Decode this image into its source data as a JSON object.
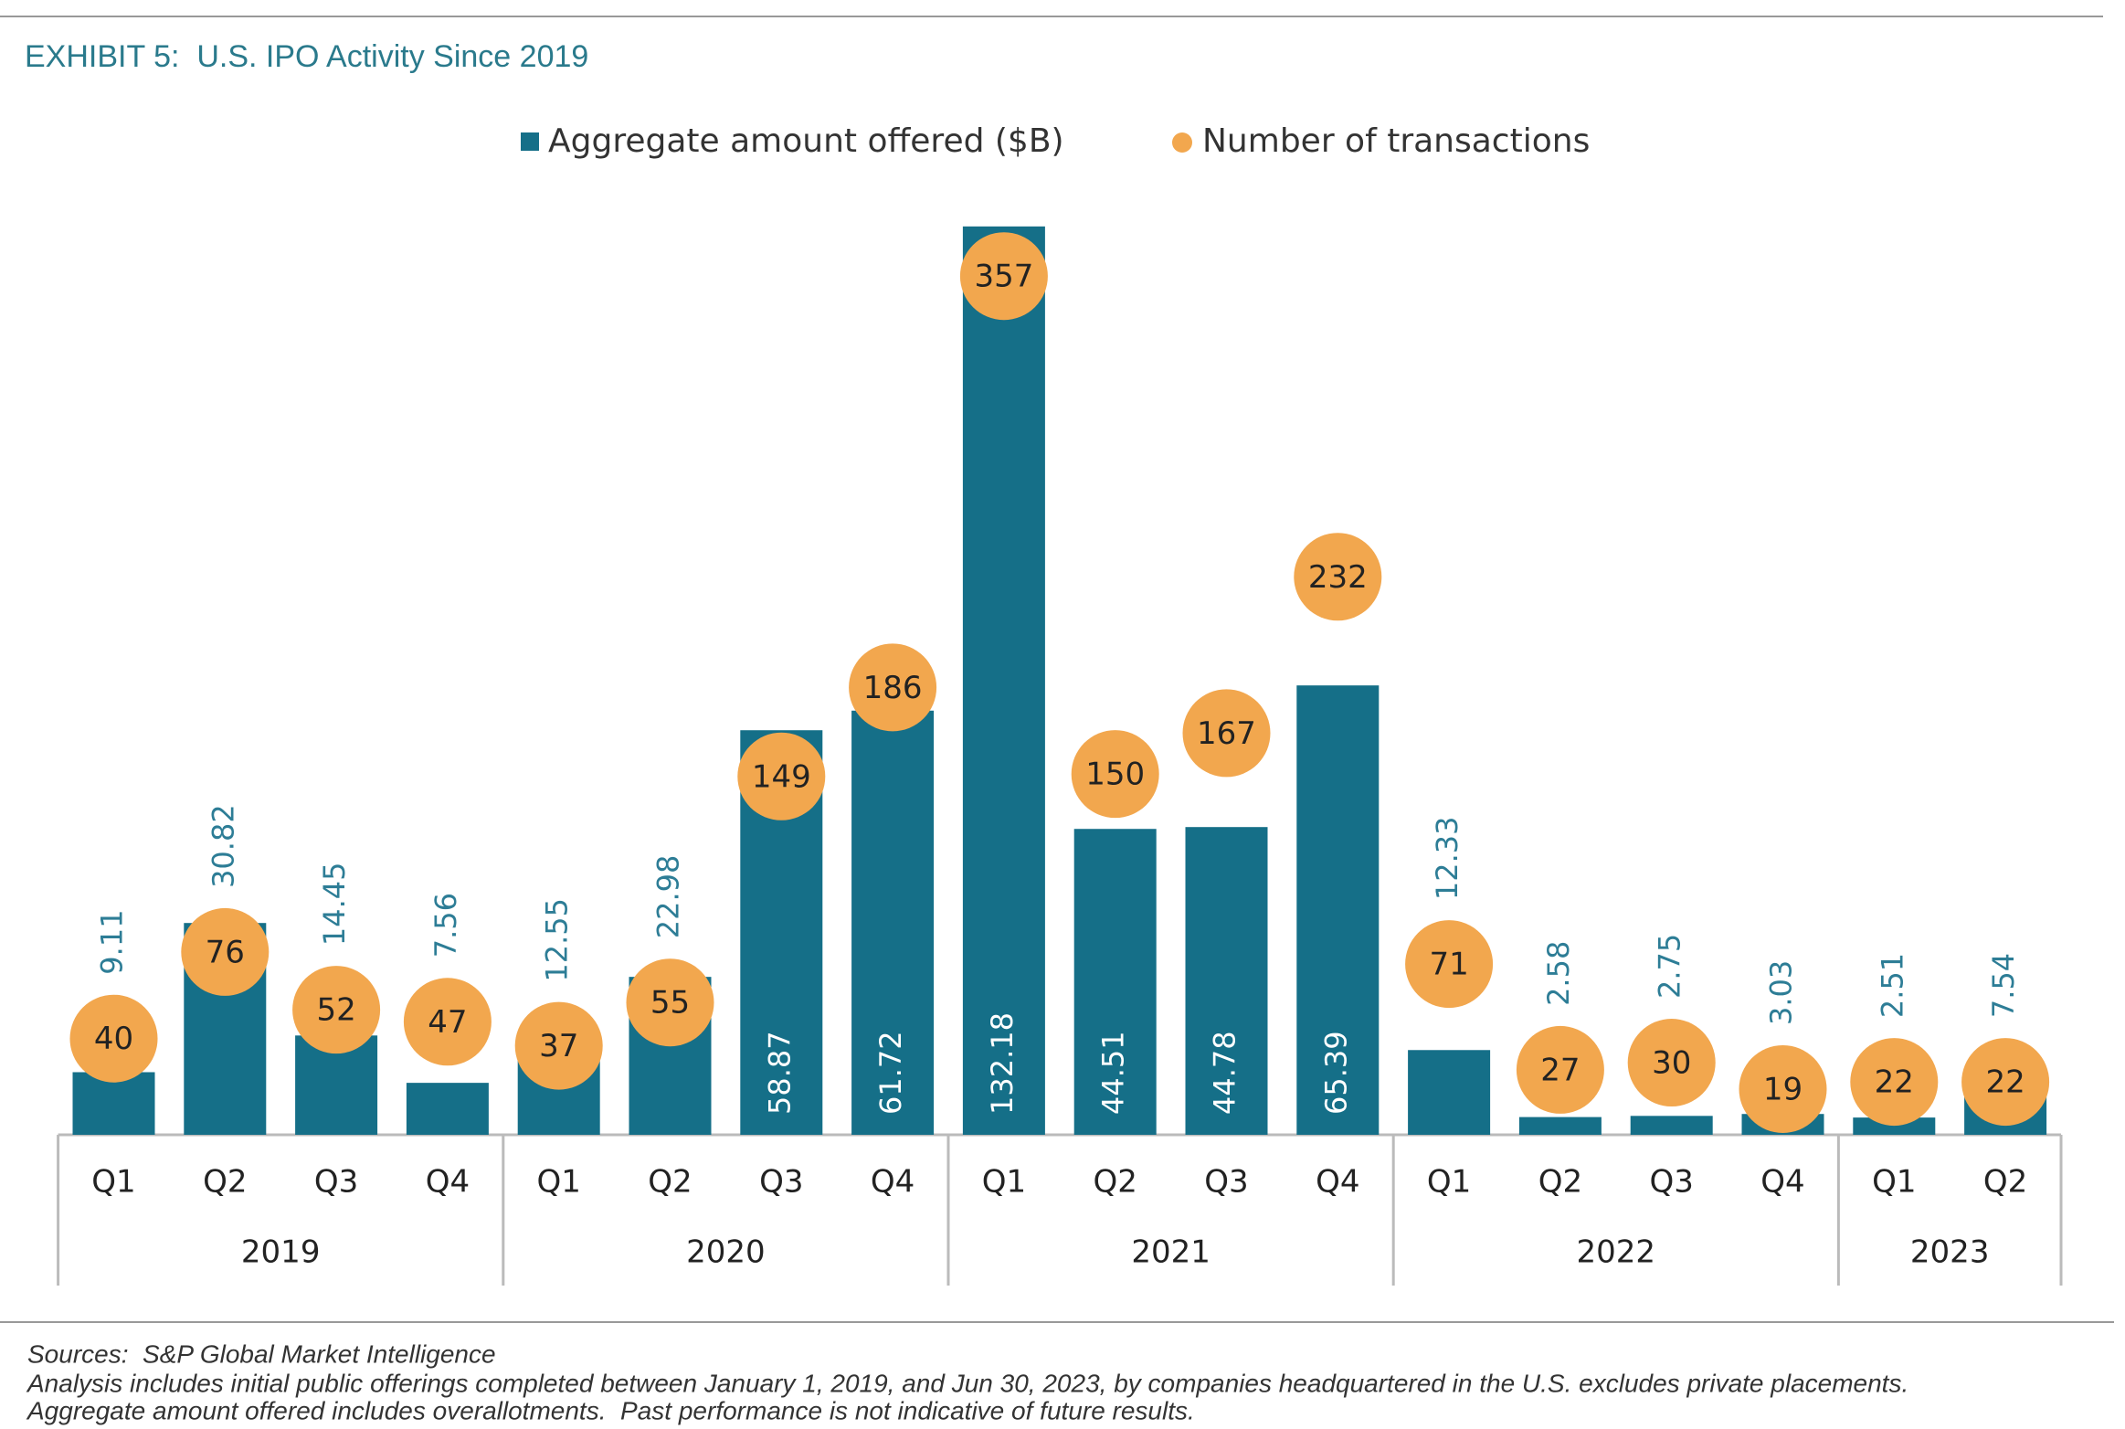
{
  "chart_data": {
    "type": "bar",
    "title": "EXHIBIT 5:  U.S. IPO Activity Since 2019",
    "categories": [
      "Q1",
      "Q2",
      "Q3",
      "Q4",
      "Q1",
      "Q2",
      "Q3",
      "Q4",
      "Q1",
      "Q2",
      "Q3",
      "Q4",
      "Q1",
      "Q2",
      "Q3",
      "Q4",
      "Q1",
      "Q2"
    ],
    "category_groups": [
      "2019",
      "2019",
      "2019",
      "2019",
      "2020",
      "2020",
      "2020",
      "2020",
      "2021",
      "2021",
      "2021",
      "2021",
      "2022",
      "2022",
      "2022",
      "2022",
      "2023",
      "2023"
    ],
    "series": [
      {
        "name": "Aggregate amount offered ($B)",
        "color": "#156f88",
        "values": [
          9.11,
          30.82,
          14.45,
          7.56,
          12.55,
          22.98,
          58.87,
          61.72,
          132.18,
          44.51,
          44.78,
          65.39,
          12.33,
          2.58,
          2.75,
          3.03,
          2.51,
          7.54
        ]
      },
      {
        "name": "Number of transactions",
        "color": "#f2a74e",
        "axis": "y2",
        "marker": "circle",
        "values": [
          40,
          76,
          52,
          47,
          37,
          55,
          149,
          186,
          357,
          150,
          167,
          232,
          71,
          27,
          30,
          19,
          22,
          22
        ]
      }
    ],
    "ylim": [
      0,
      140
    ],
    "y2lim": [
      0,
      400
    ],
    "notes": [
      "Sources:  S&P Global Market Intelligence",
      "Analysis includes initial public offerings completed between January 1, 2019, and Jun 30, 2023, by companies headquartered in the U.S. excludes private placements.",
      "Aggregate amount offered includes overallotments.  Past performance is not indicative of future results."
    ]
  }
}
